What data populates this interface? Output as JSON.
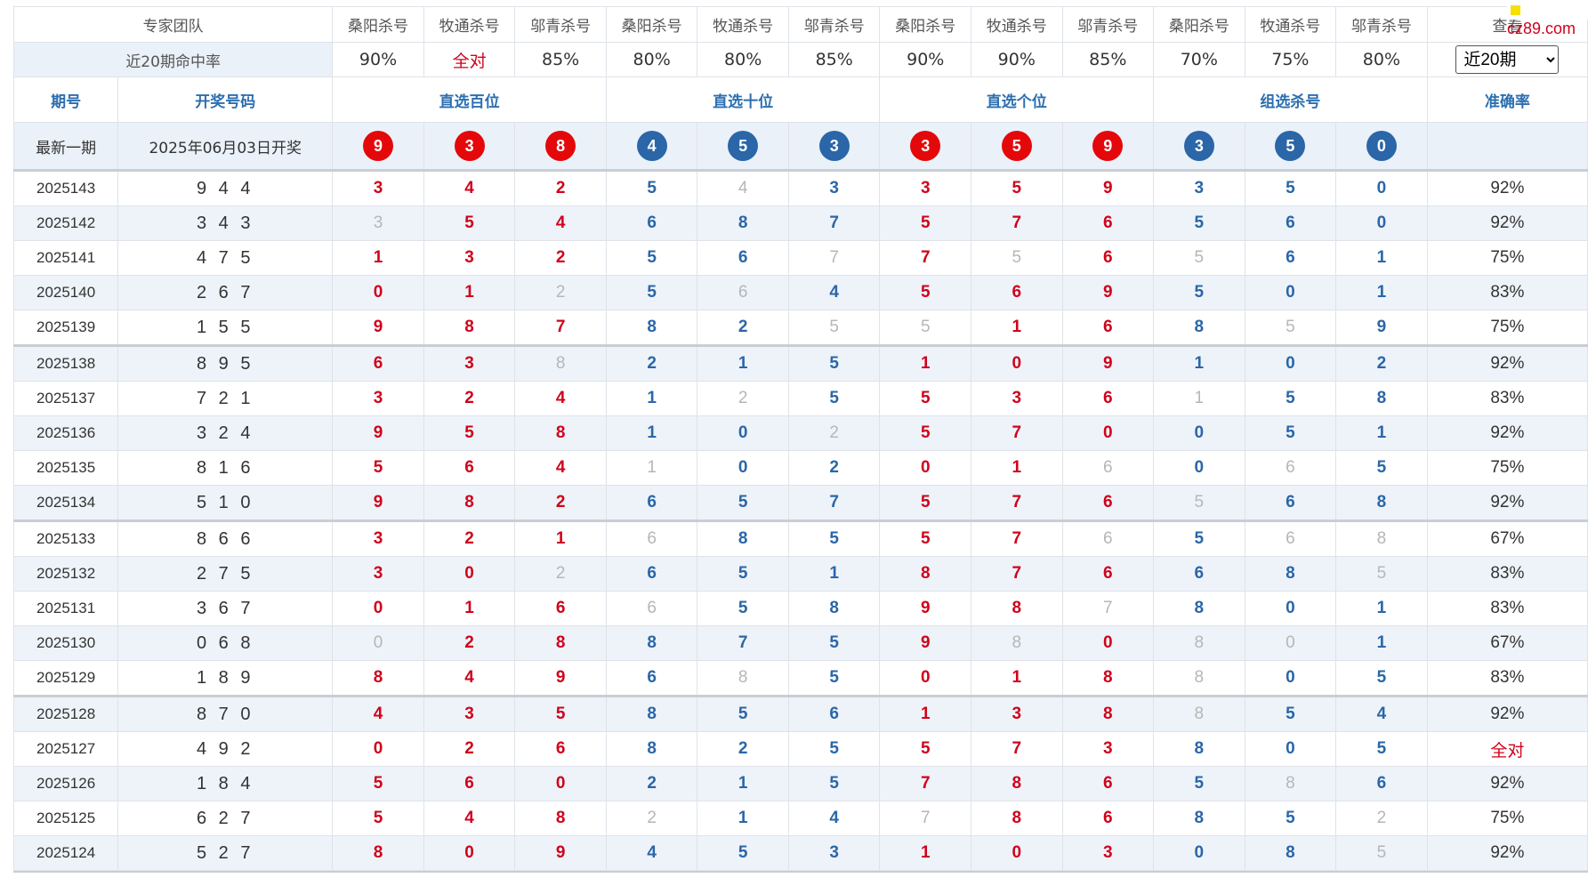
{
  "logo": "cz89.com",
  "header": {
    "team_label": "专家团队",
    "experts": [
      "桑阳杀号",
      "牧通杀号",
      "邬青杀号",
      "桑阳杀号",
      "牧通杀号",
      "邬青杀号",
      "桑阳杀号",
      "牧通杀号",
      "邬青杀号",
      "桑阳杀号",
      "牧通杀号",
      "邬青杀号"
    ],
    "view_label": "查看",
    "rate_label": "近20期命中率",
    "rates": [
      "90%",
      "全对",
      "85%",
      "80%",
      "80%",
      "85%",
      "90%",
      "90%",
      "85%",
      "70%",
      "75%",
      "80%"
    ],
    "period_select": {
      "selected": "近20期",
      "options": [
        "近20期"
      ]
    }
  },
  "sections": {
    "period": "期号",
    "draw": "开奖号码",
    "hundreds": "直选百位",
    "tens": "直选十位",
    "units": "直选个位",
    "group": "组选杀号",
    "accuracy": "准确率"
  },
  "latest": {
    "label": "最新一期",
    "date": "2025年06月03日开奖",
    "balls": [
      "9",
      "3",
      "8",
      "4",
      "5",
      "3",
      "3",
      "5",
      "9",
      "3",
      "5",
      "0"
    ]
  },
  "rows": [
    {
      "period": "2025143",
      "draw": "9 4 4",
      "values": [
        "3",
        "4",
        "2",
        "5",
        "4",
        "3",
        "3",
        "5",
        "9",
        "3",
        "5",
        "0"
      ],
      "accuracy": "92%"
    },
    {
      "period": "2025142",
      "draw": "3 4 3",
      "values": [
        "3",
        "5",
        "4",
        "6",
        "8",
        "7",
        "5",
        "7",
        "6",
        "5",
        "6",
        "0"
      ],
      "accuracy": "92%"
    },
    {
      "period": "2025141",
      "draw": "4 7 5",
      "values": [
        "1",
        "3",
        "2",
        "5",
        "6",
        "7",
        "7",
        "5",
        "6",
        "5",
        "6",
        "1"
      ],
      "accuracy": "75%"
    },
    {
      "period": "2025140",
      "draw": "2 6 7",
      "values": [
        "0",
        "1",
        "2",
        "5",
        "6",
        "4",
        "5",
        "6",
        "9",
        "5",
        "0",
        "1"
      ],
      "accuracy": "83%"
    },
    {
      "period": "2025139",
      "draw": "1 5 5",
      "values": [
        "9",
        "8",
        "7",
        "8",
        "2",
        "5",
        "5",
        "1",
        "6",
        "8",
        "5",
        "9"
      ],
      "accuracy": "75%"
    },
    {
      "period": "2025138",
      "draw": "8 9 5",
      "values": [
        "6",
        "3",
        "8",
        "2",
        "1",
        "5",
        "1",
        "0",
        "9",
        "1",
        "0",
        "2"
      ],
      "accuracy": "92%"
    },
    {
      "period": "2025137",
      "draw": "7 2 1",
      "values": [
        "3",
        "2",
        "4",
        "1",
        "2",
        "5",
        "5",
        "3",
        "6",
        "1",
        "5",
        "8"
      ],
      "accuracy": "83%"
    },
    {
      "period": "2025136",
      "draw": "3 2 4",
      "values": [
        "9",
        "5",
        "8",
        "1",
        "0",
        "2",
        "5",
        "7",
        "0",
        "0",
        "5",
        "1"
      ],
      "accuracy": "92%"
    },
    {
      "period": "2025135",
      "draw": "8 1 6",
      "values": [
        "5",
        "6",
        "4",
        "1",
        "0",
        "2",
        "0",
        "1",
        "6",
        "0",
        "6",
        "5"
      ],
      "accuracy": "75%"
    },
    {
      "period": "2025134",
      "draw": "5 1 0",
      "values": [
        "9",
        "8",
        "2",
        "6",
        "5",
        "7",
        "5",
        "7",
        "6",
        "5",
        "6",
        "8"
      ],
      "accuracy": "92%"
    },
    {
      "period": "2025133",
      "draw": "8 6 6",
      "values": [
        "3",
        "2",
        "1",
        "6",
        "8",
        "5",
        "5",
        "7",
        "6",
        "5",
        "6",
        "8"
      ],
      "accuracy": "67%"
    },
    {
      "period": "2025132",
      "draw": "2 7 5",
      "values": [
        "3",
        "0",
        "2",
        "6",
        "5",
        "1",
        "8",
        "7",
        "6",
        "6",
        "8",
        "5"
      ],
      "accuracy": "83%"
    },
    {
      "period": "2025131",
      "draw": "3 6 7",
      "values": [
        "0",
        "1",
        "6",
        "6",
        "5",
        "8",
        "9",
        "8",
        "7",
        "8",
        "0",
        "1"
      ],
      "accuracy": "83%"
    },
    {
      "period": "2025130",
      "draw": "0 6 8",
      "values": [
        "0",
        "2",
        "8",
        "8",
        "7",
        "5",
        "9",
        "8",
        "0",
        "8",
        "0",
        "1"
      ],
      "accuracy": "67%"
    },
    {
      "period": "2025129",
      "draw": "1 8 9",
      "values": [
        "8",
        "4",
        "9",
        "6",
        "8",
        "5",
        "0",
        "1",
        "8",
        "8",
        "0",
        "5"
      ],
      "accuracy": "83%"
    },
    {
      "period": "2025128",
      "draw": "8 7 0",
      "values": [
        "4",
        "3",
        "5",
        "8",
        "5",
        "6",
        "1",
        "3",
        "8",
        "8",
        "5",
        "4"
      ],
      "accuracy": "92%"
    },
    {
      "period": "2025127",
      "draw": "4 9 2",
      "values": [
        "0",
        "2",
        "6",
        "8",
        "2",
        "5",
        "5",
        "7",
        "3",
        "8",
        "0",
        "5"
      ],
      "accuracy": "全对"
    },
    {
      "period": "2025126",
      "draw": "1 8 4",
      "values": [
        "5",
        "6",
        "0",
        "2",
        "1",
        "5",
        "7",
        "8",
        "6",
        "5",
        "8",
        "6"
      ],
      "accuracy": "92%"
    },
    {
      "period": "2025125",
      "draw": "6 2 7",
      "values": [
        "5",
        "4",
        "8",
        "2",
        "1",
        "4",
        "7",
        "8",
        "6",
        "8",
        "5",
        "2"
      ],
      "accuracy": "75%"
    },
    {
      "period": "2025124",
      "draw": "5 2 7",
      "values": [
        "8",
        "0",
        "9",
        "4",
        "5",
        "3",
        "1",
        "0",
        "3",
        "0",
        "8",
        "5"
      ],
      "accuracy": "92%"
    }
  ],
  "colors": {
    "red": "#d0021b",
    "blue": "#2a66a8",
    "miss": "#b6b6b6",
    "ball_red": "#e4080a",
    "ball_blue": "#2a66a8",
    "header_bg": "#eaf1f9"
  }
}
